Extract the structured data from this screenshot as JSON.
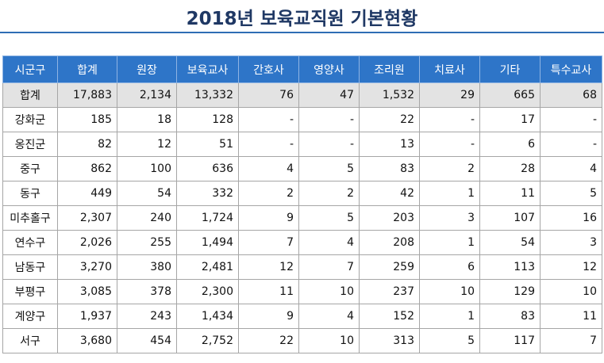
{
  "title": "2018년 보육교직원 기본현황",
  "table": {
    "headers": [
      "시군구",
      "합계",
      "원장",
      "보육교사",
      "간호사",
      "영양사",
      "조리원",
      "치료사",
      "기타",
      "특수교사"
    ],
    "rows": [
      [
        "합계",
        "17,883",
        "2,134",
        "13,332",
        "76",
        "47",
        "1,532",
        "29",
        "665",
        "68"
      ],
      [
        "강화군",
        "185",
        "18",
        "128",
        "-",
        "-",
        "22",
        "-",
        "17",
        "-"
      ],
      [
        "옹진군",
        "82",
        "12",
        "51",
        "-",
        "-",
        "13",
        "-",
        "6",
        "-"
      ],
      [
        "중구",
        "862",
        "100",
        "636",
        "4",
        "5",
        "83",
        "2",
        "28",
        "4"
      ],
      [
        "동구",
        "449",
        "54",
        "332",
        "2",
        "2",
        "42",
        "1",
        "11",
        "5"
      ],
      [
        "미추홀구",
        "2,307",
        "240",
        "1,724",
        "9",
        "5",
        "203",
        "3",
        "107",
        "16"
      ],
      [
        "연수구",
        "2,026",
        "255",
        "1,494",
        "7",
        "4",
        "208",
        "1",
        "54",
        "3"
      ],
      [
        "남동구",
        "3,270",
        "380",
        "2,481",
        "12",
        "7",
        "259",
        "6",
        "113",
        "12"
      ],
      [
        "부평구",
        "3,085",
        "378",
        "2,300",
        "11",
        "10",
        "237",
        "10",
        "129",
        "10"
      ],
      [
        "계양구",
        "1,937",
        "243",
        "1,434",
        "9",
        "4",
        "152",
        "1",
        "83",
        "11"
      ],
      [
        "서구",
        "3,680",
        "454",
        "2,752",
        "22",
        "10",
        "313",
        "5",
        "117",
        "7"
      ]
    ]
  },
  "colors": {
    "title": "#1f3864",
    "rule": "#2e6db4",
    "header_bg": "#2e75c8",
    "header_text": "#ffffff",
    "total_row_bg": "#e3e3e3"
  }
}
